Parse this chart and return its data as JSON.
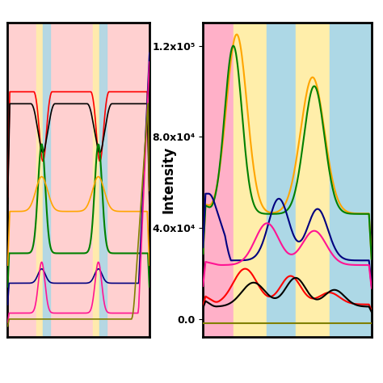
{
  "fig_width": 4.74,
  "fig_height": 4.74,
  "dpi": 100,
  "ylabel": "Intensity",
  "left_bg_color": "#FFD0D0",
  "right_region_boundaries": [
    0.0,
    0.18,
    0.38,
    0.55,
    0.75,
    1.0
  ],
  "right_region_colors": [
    "#FFB0C8",
    "#FFEEAA",
    "#ADD8E6",
    "#FFEEAA",
    "#ADD8E6"
  ],
  "ytick_labels": [
    "0.0",
    "4.0x10⁴",
    "8.0x10⁴",
    "1.2x10⁵"
  ],
  "ytick_values": [
    0.0,
    40000,
    80000,
    120000
  ],
  "ymin": -8000,
  "ymax": 130000
}
